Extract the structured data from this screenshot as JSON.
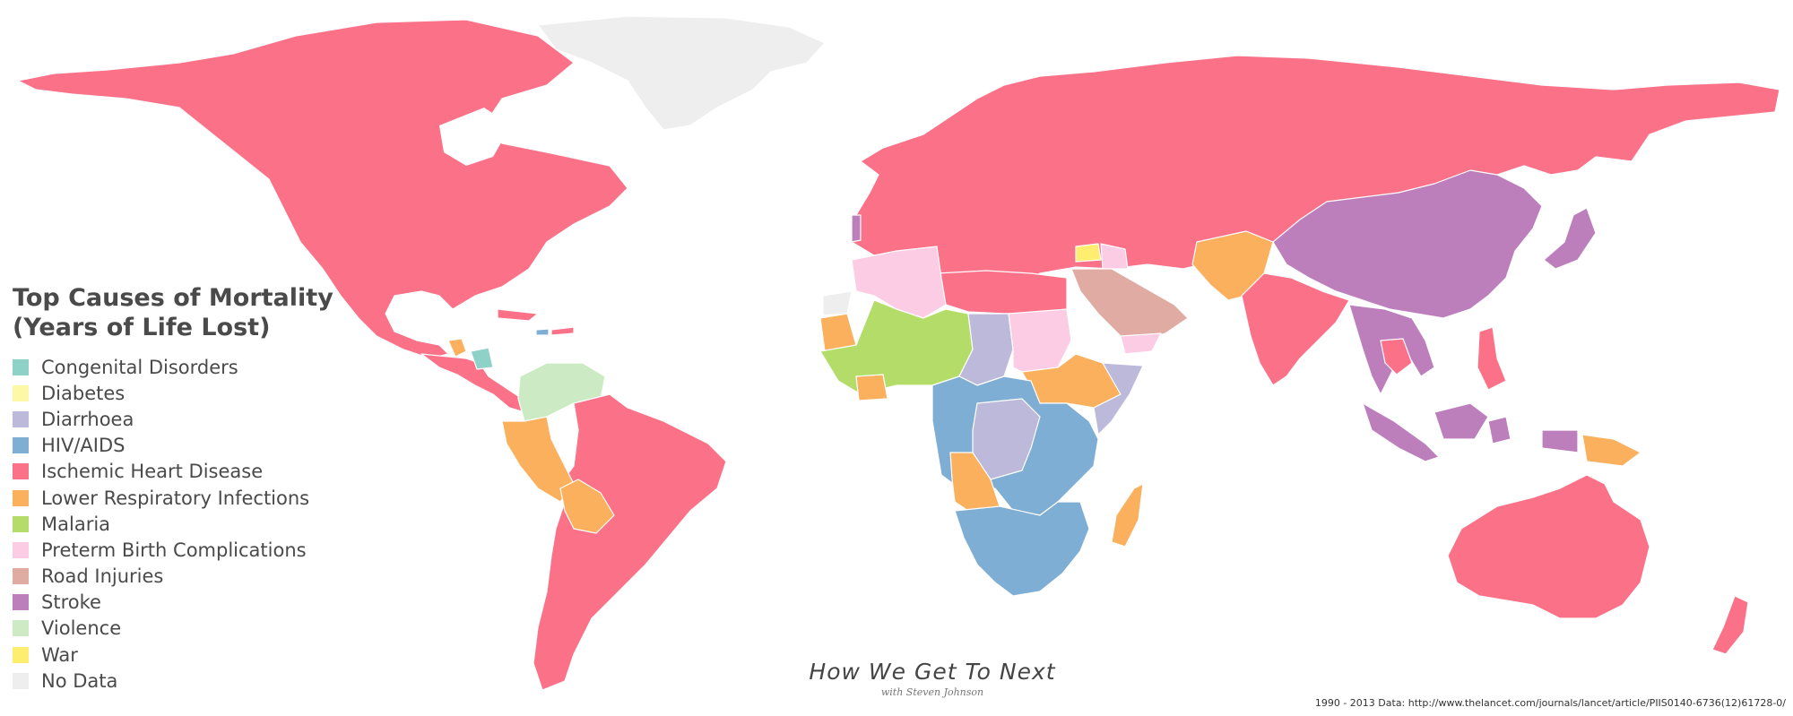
{
  "legend": {
    "title_line1": "Top Causes of Mortality",
    "title_line2": "(Years of Life Lost)",
    "items": [
      {
        "label": "Congenital Disorders",
        "color": "#8ed1c6"
      },
      {
        "label": "Diabetes",
        "color": "#fdf8a6"
      },
      {
        "label": "Diarrhoea",
        "color": "#bcb9da"
      },
      {
        "label": "HIV/AIDS",
        "color": "#7eaed3"
      },
      {
        "label": "Ischemic Heart Disease",
        "color": "#fb7188"
      },
      {
        "label": "Lower Respiratory Infections",
        "color": "#fbb05e"
      },
      {
        "label": "Malaria",
        "color": "#b3dd68"
      },
      {
        "label": "Preterm Birth Complications",
        "color": "#fccce5"
      },
      {
        "label": "Road Injuries",
        "color": "#dfaba3"
      },
      {
        "label": "Stroke",
        "color": "#bc7fbc"
      },
      {
        "label": "Violence",
        "color": "#ccebc5"
      },
      {
        "label": "War",
        "color": "#ffed6f"
      },
      {
        "label": "No Data",
        "color": "#eeeeee"
      }
    ]
  },
  "branding": {
    "name": "How We Get To Next",
    "byline": "with Steven Johnson"
  },
  "source": "1990 - 2013 Data: http://www.thelancet.com/journals/lancet/article/PIIS0140-6736(12)61728-0/",
  "regions": [
    {
      "id": "greenland",
      "category": "No Data"
    },
    {
      "id": "north-america",
      "category": "Ischemic Heart Disease"
    },
    {
      "id": "central-america",
      "category": "Ischemic Heart Disease"
    },
    {
      "id": "caribbean",
      "category": "Ischemic Heart Disease"
    },
    {
      "id": "honduras",
      "category": "Congenital Disorders"
    },
    {
      "id": "haiti",
      "category": "HIV/AIDS"
    },
    {
      "id": "guatemala",
      "category": "Lower Respiratory Infections"
    },
    {
      "id": "venezuela-colombia",
      "category": "Violence"
    },
    {
      "id": "peru",
      "category": "Lower Respiratory Infections"
    },
    {
      "id": "bolivia",
      "category": "Lower Respiratory Infections"
    },
    {
      "id": "south-america",
      "category": "Ischemic Heart Disease"
    },
    {
      "id": "europe-russia",
      "category": "Ischemic Heart Disease"
    },
    {
      "id": "portugal",
      "category": "Stroke"
    },
    {
      "id": "north-africa",
      "category": "Ischemic Heart Disease"
    },
    {
      "id": "algeria-mali",
      "category": "Preterm Birth Complications"
    },
    {
      "id": "western-sahara",
      "category": "No Data"
    },
    {
      "id": "mauritania",
      "category": "Lower Respiratory Infections"
    },
    {
      "id": "west-africa",
      "category": "Malaria"
    },
    {
      "id": "nigeria-south",
      "category": "Lower Respiratory Infections"
    },
    {
      "id": "chad",
      "category": "Diarrhoea"
    },
    {
      "id": "sudan",
      "category": "Preterm Birth Complications"
    },
    {
      "id": "ethiopia",
      "category": "Lower Respiratory Infections"
    },
    {
      "id": "somalia",
      "category": "Diarrhoea"
    },
    {
      "id": "central-africa",
      "category": "HIV/AIDS"
    },
    {
      "id": "drc",
      "category": "Diarrhoea"
    },
    {
      "id": "angola",
      "category": "Lower Respiratory Infections"
    },
    {
      "id": "southern-africa",
      "category": "HIV/AIDS"
    },
    {
      "id": "madagascar",
      "category": "Lower Respiratory Infections"
    },
    {
      "id": "syria",
      "category": "War"
    },
    {
      "id": "iraq",
      "category": "Preterm Birth Complications"
    },
    {
      "id": "saudi-arabia",
      "category": "Road Injuries"
    },
    {
      "id": "yemen",
      "category": "Preterm Birth Complications"
    },
    {
      "id": "afghanistan-pakistan",
      "category": "Lower Respiratory Infections"
    },
    {
      "id": "india",
      "category": "Ischemic Heart Disease"
    },
    {
      "id": "china",
      "category": "Stroke"
    },
    {
      "id": "japan",
      "category": "Stroke"
    },
    {
      "id": "southeast-asia",
      "category": "Stroke"
    },
    {
      "id": "thailand",
      "category": "Ischemic Heart Disease"
    },
    {
      "id": "indonesia",
      "category": "Stroke"
    },
    {
      "id": "philippines",
      "category": "Ischemic Heart Disease"
    },
    {
      "id": "png",
      "category": "Lower Respiratory Infections"
    },
    {
      "id": "australia",
      "category": "Ischemic Heart Disease"
    },
    {
      "id": "new-zealand",
      "category": "Ischemic Heart Disease"
    }
  ]
}
